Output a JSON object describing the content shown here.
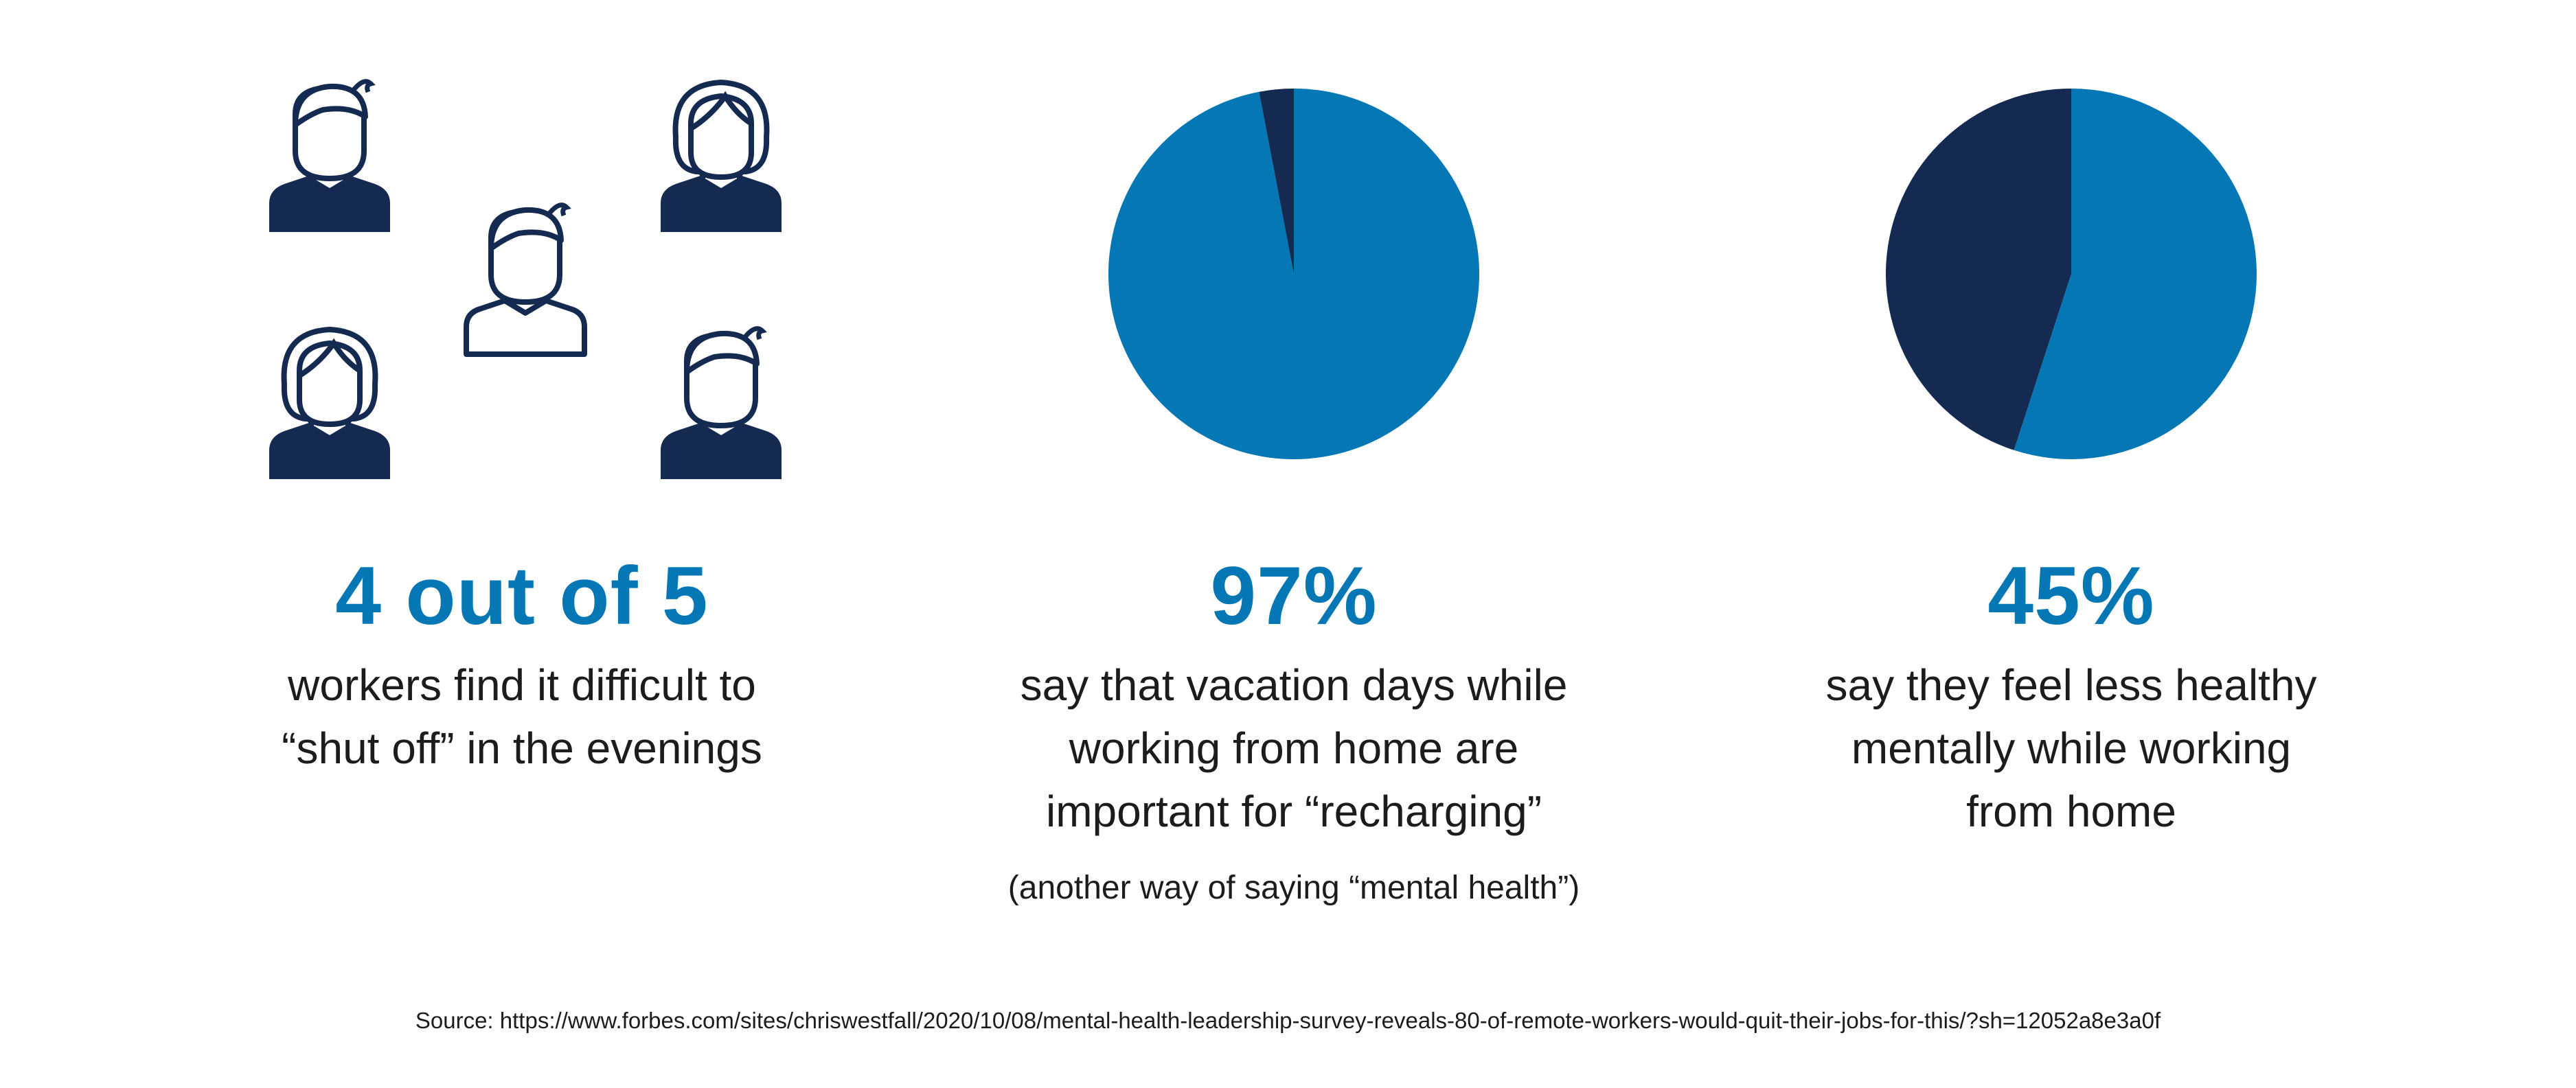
{
  "colors": {
    "accent": "#0477b4",
    "navy": "#142a50",
    "text": "#1c1c1c",
    "white": "#ffffff"
  },
  "stats": [
    {
      "headline": "4 out of 5",
      "lines": [
        "workers find it difficult to",
        "“shut off” in the evenings"
      ]
    },
    {
      "headline": "97%",
      "lines": [
        "say that vacation days while",
        "working from home are",
        "important for “recharging”"
      ],
      "note": "(another way of saying “mental health”)"
    },
    {
      "headline": "45%",
      "lines": [
        "say they feel less healthy",
        "mentally while working",
        "from home"
      ]
    }
  ],
  "people_icons": [
    {
      "kind": "man",
      "filled": true
    },
    {
      "kind": "woman",
      "filled": true
    },
    {
      "kind": "man",
      "filled": false
    },
    {
      "kind": "woman",
      "filled": true
    },
    {
      "kind": "man",
      "filled": true
    }
  ],
  "source": "Source: https://www.forbes.com/sites/chriswestfall/2020/10/08/mental-health-leadership-survey-reveals-80-of-remote-workers-would-quit-their-jobs-for-this/?sh=12052a8e3a0f",
  "chart_data": [
    {
      "type": "pie",
      "values": [
        97,
        3
      ],
      "colors": [
        "#0477b4",
        "#142a50"
      ]
    },
    {
      "type": "pie",
      "values": [
        55,
        45
      ],
      "colors": [
        "#0477b4",
        "#142a50"
      ]
    }
  ]
}
